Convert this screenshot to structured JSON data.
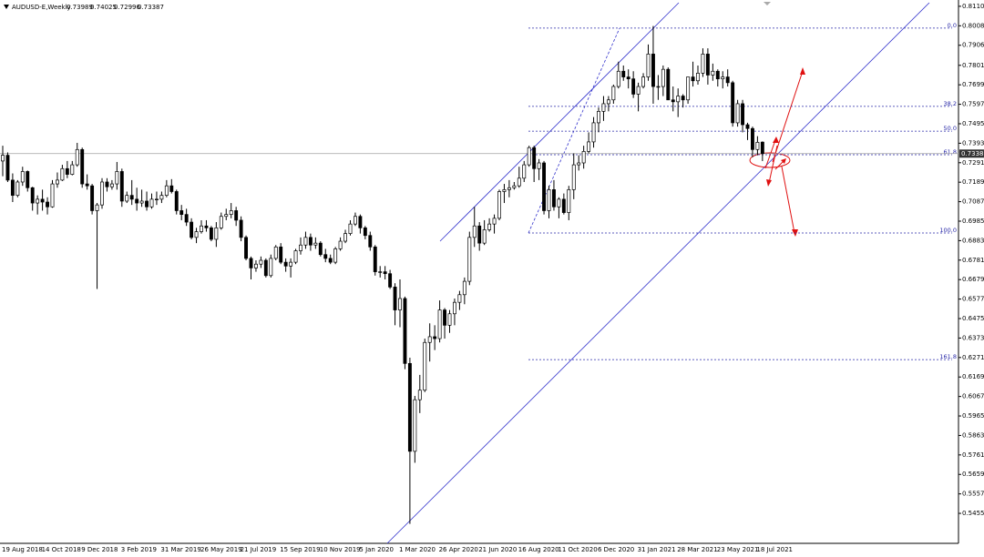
{
  "chart_data": {
    "type": "candlestick",
    "symbol": "AUDUSD-E,Weekly",
    "categories": [
      "19 Aug 2018",
      null,
      null,
      null,
      null,
      null,
      null,
      null,
      "14 Oct 2018",
      null,
      null,
      null,
      null,
      null,
      null,
      null,
      "9 Dec 2018",
      null,
      null,
      null,
      null,
      null,
      null,
      null,
      "3 Feb 2019",
      null,
      null,
      null,
      null,
      null,
      null,
      null,
      "31 Mar 2019",
      null,
      null,
      null,
      null,
      null,
      null,
      null,
      "26 May 2019",
      null,
      null,
      null,
      null,
      null,
      null,
      null,
      "21 Jul 2019",
      null,
      null,
      null,
      null,
      null,
      null,
      null,
      "15 Sep 2019",
      null,
      null,
      null,
      null,
      null,
      null,
      null,
      "10 Nov 2019",
      null,
      null,
      null,
      null,
      null,
      null,
      null,
      "5 Jan 2020",
      null,
      null,
      null,
      null,
      null,
      null,
      null,
      "1 Mar 2020",
      null,
      null,
      null,
      null,
      null,
      null,
      null,
      "26 Apr 2020",
      null,
      null,
      null,
      null,
      null,
      null,
      null,
      "21 Jun 2020",
      null,
      null,
      null,
      null,
      null,
      null,
      null,
      "16 Aug 2020",
      null,
      null,
      null,
      null,
      null,
      null,
      null,
      "11 Oct 2020",
      null,
      null,
      null,
      null,
      null,
      null,
      null,
      "6 Dec 2020",
      null,
      null,
      null,
      null,
      null,
      null,
      null,
      "31 Jan 2021",
      null,
      null,
      null,
      null,
      null,
      null,
      null,
      "28 Mar 2021",
      null,
      null,
      null,
      null,
      null,
      null,
      null,
      "23 May 2021",
      null,
      null,
      null,
      null,
      null,
      null,
      null,
      "18 Jul 2021",
      null
    ],
    "candles": [
      [
        0.73,
        0.738,
        0.722,
        0.733
      ],
      [
        0.733,
        0.7345,
        0.719,
        0.72
      ],
      [
        0.72,
        0.7235,
        0.7085,
        0.712
      ],
      [
        0.712,
        0.72,
        0.711,
        0.719
      ],
      [
        0.719,
        0.727,
        0.717,
        0.7245
      ],
      [
        0.7245,
        0.725,
        0.714,
        0.716
      ],
      [
        0.716,
        0.7165,
        0.704,
        0.708
      ],
      [
        0.708,
        0.712,
        0.702,
        0.71
      ],
      [
        0.71,
        0.715,
        0.704,
        0.7085
      ],
      [
        0.7085,
        0.711,
        0.702,
        0.706
      ],
      [
        0.706,
        0.72,
        0.7055,
        0.718
      ],
      [
        0.718,
        0.724,
        0.716,
        0.72
      ],
      [
        0.72,
        0.728,
        0.7195,
        0.726
      ],
      [
        0.726,
        0.73,
        0.721,
        0.723
      ],
      [
        0.723,
        0.73,
        0.7225,
        0.728
      ],
      [
        0.728,
        0.7395,
        0.727,
        0.736
      ],
      [
        0.736,
        0.737,
        0.716,
        0.718
      ],
      [
        0.718,
        0.723,
        0.715,
        0.717
      ],
      [
        0.717,
        0.718,
        0.702,
        0.704
      ],
      [
        0.704,
        0.708,
        0.663,
        0.707
      ],
      [
        0.707,
        0.721,
        0.705,
        0.719
      ],
      [
        0.719,
        0.721,
        0.714,
        0.7165
      ],
      [
        0.7165,
        0.72,
        0.715,
        0.718
      ],
      [
        0.718,
        0.7295,
        0.715,
        0.7245
      ],
      [
        0.7245,
        0.726,
        0.706,
        0.709
      ],
      [
        0.709,
        0.714,
        0.708,
        0.712
      ],
      [
        0.712,
        0.72,
        0.707,
        0.71
      ],
      [
        0.71,
        0.716,
        0.704,
        0.708
      ],
      [
        0.708,
        0.715,
        0.706,
        0.709
      ],
      [
        0.709,
        0.714,
        0.704,
        0.706
      ],
      [
        0.706,
        0.713,
        0.705,
        0.71
      ],
      [
        0.71,
        0.714,
        0.707,
        0.71
      ],
      [
        0.71,
        0.714,
        0.708,
        0.712
      ],
      [
        0.712,
        0.72,
        0.711,
        0.717
      ],
      [
        0.717,
        0.7205,
        0.713,
        0.714
      ],
      [
        0.714,
        0.715,
        0.702,
        0.704
      ],
      [
        0.704,
        0.707,
        0.699,
        0.702
      ],
      [
        0.702,
        0.705,
        0.696,
        0.698
      ],
      [
        0.698,
        0.7,
        0.689,
        0.69
      ],
      [
        0.69,
        0.695,
        0.687,
        0.693
      ],
      [
        0.693,
        0.699,
        0.692,
        0.696
      ],
      [
        0.696,
        0.699,
        0.693,
        0.695
      ],
      [
        0.695,
        0.696,
        0.688,
        0.689
      ],
      [
        0.689,
        0.698,
        0.685,
        0.695
      ],
      [
        0.695,
        0.703,
        0.694,
        0.701
      ],
      [
        0.701,
        0.705,
        0.699,
        0.702
      ],
      [
        0.702,
        0.708,
        0.7,
        0.704
      ],
      [
        0.704,
        0.706,
        0.696,
        0.699
      ],
      [
        0.699,
        0.701,
        0.688,
        0.69
      ],
      [
        0.69,
        0.691,
        0.678,
        0.679
      ],
      [
        0.679,
        0.68,
        0.668,
        0.674
      ],
      [
        0.674,
        0.678,
        0.672,
        0.676
      ],
      [
        0.676,
        0.68,
        0.674,
        0.678
      ],
      [
        0.678,
        0.679,
        0.669,
        0.67
      ],
      [
        0.67,
        0.681,
        0.669,
        0.679
      ],
      [
        0.679,
        0.686,
        0.678,
        0.685
      ],
      [
        0.685,
        0.687,
        0.676,
        0.677
      ],
      [
        0.677,
        0.679,
        0.672,
        0.675
      ],
      [
        0.675,
        0.679,
        0.669,
        0.677
      ],
      [
        0.677,
        0.684,
        0.676,
        0.683
      ],
      [
        0.683,
        0.69,
        0.681,
        0.686
      ],
      [
        0.686,
        0.693,
        0.684,
        0.69
      ],
      [
        0.69,
        0.692,
        0.683,
        0.686
      ],
      [
        0.686,
        0.69,
        0.684,
        0.687
      ],
      [
        0.687,
        0.688,
        0.68,
        0.681
      ],
      [
        0.681,
        0.684,
        0.677,
        0.679
      ],
      [
        0.679,
        0.681,
        0.676,
        0.677
      ],
      [
        0.677,
        0.685,
        0.676,
        0.684
      ],
      [
        0.684,
        0.69,
        0.683,
        0.688
      ],
      [
        0.688,
        0.694,
        0.687,
        0.692
      ],
      [
        0.692,
        0.699,
        0.691,
        0.697
      ],
      [
        0.697,
        0.703,
        0.696,
        0.701
      ],
      [
        0.701,
        0.702,
        0.692,
        0.695
      ],
      [
        0.695,
        0.696,
        0.689,
        0.691
      ],
      [
        0.691,
        0.693,
        0.683,
        0.685
      ],
      [
        0.685,
        0.686,
        0.67,
        0.672
      ],
      [
        0.672,
        0.675,
        0.669,
        0.672
      ],
      [
        0.672,
        0.675,
        0.668,
        0.671
      ],
      [
        0.671,
        0.673,
        0.663,
        0.664
      ],
      [
        0.664,
        0.666,
        0.644,
        0.652
      ],
      [
        0.652,
        0.668,
        0.643,
        0.658
      ],
      [
        0.658,
        0.659,
        0.621,
        0.624
      ],
      [
        0.624,
        0.627,
        0.54,
        0.578
      ],
      [
        0.578,
        0.607,
        0.572,
        0.605
      ],
      [
        0.605,
        0.618,
        0.598,
        0.61
      ],
      [
        0.61,
        0.637,
        0.609,
        0.635
      ],
      [
        0.635,
        0.645,
        0.625,
        0.638
      ],
      [
        0.638,
        0.644,
        0.631,
        0.637
      ],
      [
        0.637,
        0.657,
        0.635,
        0.652
      ],
      [
        0.652,
        0.653,
        0.637,
        0.644
      ],
      [
        0.644,
        0.652,
        0.64,
        0.65
      ],
      [
        0.65,
        0.658,
        0.644,
        0.656
      ],
      [
        0.656,
        0.662,
        0.652,
        0.66
      ],
      [
        0.66,
        0.669,
        0.655,
        0.667
      ],
      [
        0.667,
        0.693,
        0.665,
        0.69
      ],
      [
        0.69,
        0.706,
        0.685,
        0.696
      ],
      [
        0.696,
        0.698,
        0.683,
        0.687
      ],
      [
        0.687,
        0.699,
        0.686,
        0.694
      ],
      [
        0.694,
        0.7,
        0.693,
        0.697
      ],
      [
        0.697,
        0.702,
        0.692,
        0.7
      ],
      [
        0.7,
        0.715,
        0.699,
        0.714
      ],
      [
        0.714,
        0.718,
        0.708,
        0.715
      ],
      [
        0.715,
        0.72,
        0.711,
        0.716
      ],
      [
        0.716,
        0.719,
        0.715,
        0.717
      ],
      [
        0.717,
        0.727,
        0.716,
        0.721
      ],
      [
        0.721,
        0.73,
        0.719,
        0.728
      ],
      [
        0.728,
        0.738,
        0.727,
        0.737
      ],
      [
        0.737,
        0.738,
        0.719,
        0.726
      ],
      [
        0.726,
        0.731,
        0.72,
        0.729
      ],
      [
        0.729,
        0.73,
        0.702,
        0.704
      ],
      [
        0.704,
        0.717,
        0.7,
        0.715
      ],
      [
        0.715,
        0.72,
        0.704,
        0.706
      ],
      [
        0.706,
        0.711,
        0.7,
        0.71
      ],
      [
        0.71,
        0.713,
        0.702,
        0.703
      ],
      [
        0.703,
        0.717,
        0.699,
        0.715
      ],
      [
        0.715,
        0.734,
        0.71,
        0.728
      ],
      [
        0.728,
        0.733,
        0.725,
        0.729
      ],
      [
        0.729,
        0.738,
        0.726,
        0.735
      ],
      [
        0.735,
        0.745,
        0.734,
        0.74
      ],
      [
        0.74,
        0.753,
        0.737,
        0.75
      ],
      [
        0.75,
        0.758,
        0.745,
        0.756
      ],
      [
        0.756,
        0.764,
        0.751,
        0.76
      ],
      [
        0.76,
        0.764,
        0.756,
        0.762
      ],
      [
        0.762,
        0.77,
        0.76,
        0.769
      ],
      [
        0.769,
        0.782,
        0.768,
        0.777
      ],
      [
        0.777,
        0.78,
        0.772,
        0.774
      ],
      [
        0.774,
        0.778,
        0.768,
        0.773
      ],
      [
        0.773,
        0.777,
        0.763,
        0.765
      ],
      [
        0.765,
        0.771,
        0.756,
        0.769
      ],
      [
        0.769,
        0.776,
        0.768,
        0.774
      ],
      [
        0.774,
        0.791,
        0.772,
        0.786
      ],
      [
        0.786,
        0.8007,
        0.76,
        0.769
      ],
      [
        0.769,
        0.775,
        0.762,
        0.769
      ],
      [
        0.769,
        0.78,
        0.764,
        0.778
      ],
      [
        0.778,
        0.779,
        0.762,
        0.762
      ],
      [
        0.762,
        0.769,
        0.756,
        0.761
      ],
      [
        0.761,
        0.768,
        0.753,
        0.764
      ],
      [
        0.764,
        0.765,
        0.758,
        0.762
      ],
      [
        0.762,
        0.774,
        0.76,
        0.774
      ],
      [
        0.774,
        0.782,
        0.769,
        0.772
      ],
      [
        0.772,
        0.78,
        0.77,
        0.776
      ],
      [
        0.776,
        0.789,
        0.774,
        0.786
      ],
      [
        0.786,
        0.789,
        0.77,
        0.775
      ],
      [
        0.775,
        0.781,
        0.772,
        0.777
      ],
      [
        0.777,
        0.778,
        0.769,
        0.773
      ],
      [
        0.773,
        0.777,
        0.768,
        0.774
      ],
      [
        0.774,
        0.778,
        0.769,
        0.771
      ],
      [
        0.771,
        0.772,
        0.748,
        0.75
      ],
      [
        0.75,
        0.762,
        0.748,
        0.76
      ],
      [
        0.76,
        0.762,
        0.745,
        0.749
      ],
      [
        0.749,
        0.75,
        0.741,
        0.747
      ],
      [
        0.747,
        0.748,
        0.732,
        0.736
      ],
      [
        0.736,
        0.743,
        0.733,
        0.7398
      ],
      [
        0.73989,
        0.74025,
        0.72996,
        0.73387
      ]
    ],
    "colors": {
      "up": "#ffffff",
      "down": "#000000",
      "outline": "#000000"
    },
    "ylim": [
      0.5298,
      0.8143
    ],
    "yticks": [
      {
        "value": 0.811,
        "label": "0.81100"
      },
      {
        "value": 0.8008,
        "label": "0.80080"
      },
      {
        "value": 0.7906,
        "label": "0.79060"
      },
      {
        "value": 0.7801,
        "label": "0.78010"
      },
      {
        "value": 0.7699,
        "label": "0.76990"
      },
      {
        "value": 0.7597,
        "label": "0.75970"
      },
      {
        "value": 0.7495,
        "label": "0.74950"
      },
      {
        "value": 0.7393,
        "label": "0.73930"
      },
      {
        "value": 0.7291,
        "label": "0.72910"
      },
      {
        "value": 0.7189,
        "label": "0.71890"
      },
      {
        "value": 0.7087,
        "label": "0.70870"
      },
      {
        "value": 0.6985,
        "label": "0.69850"
      },
      {
        "value": 0.6883,
        "label": "0.68830"
      },
      {
        "value": 0.6781,
        "label": "0.67810"
      },
      {
        "value": 0.6679,
        "label": "0.66790"
      },
      {
        "value": 0.6577,
        "label": "0.65770"
      },
      {
        "value": 0.6475,
        "label": "0.64750"
      },
      {
        "value": 0.6373,
        "label": "0.63730"
      },
      {
        "value": 0.6271,
        "label": "0.62710"
      },
      {
        "value": 0.6169,
        "label": "0.61690"
      },
      {
        "value": 0.6067,
        "label": "0.60670"
      },
      {
        "value": 0.5965,
        "label": "0.59650"
      },
      {
        "value": 0.5863,
        "label": "0.58630"
      },
      {
        "value": 0.5761,
        "label": "0.57610"
      },
      {
        "value": 0.5659,
        "label": "0.56590"
      },
      {
        "value": 0.5557,
        "label": "0.55570"
      },
      {
        "value": 0.5455,
        "label": "0.54550"
      }
    ],
    "fib_levels": [
      {
        "value": 0.7996,
        "label": "0.0"
      },
      {
        "value": 0.7586,
        "label": "38.2"
      },
      {
        "value": 0.7456,
        "label": "50.0"
      },
      {
        "value": 0.7333,
        "label": "61.8"
      },
      {
        "value": 0.6923,
        "label": "100.0"
      },
      {
        "value": 0.626,
        "label": "161.8"
      }
    ],
    "fib_color": "#2a2aa8"
  }
}
